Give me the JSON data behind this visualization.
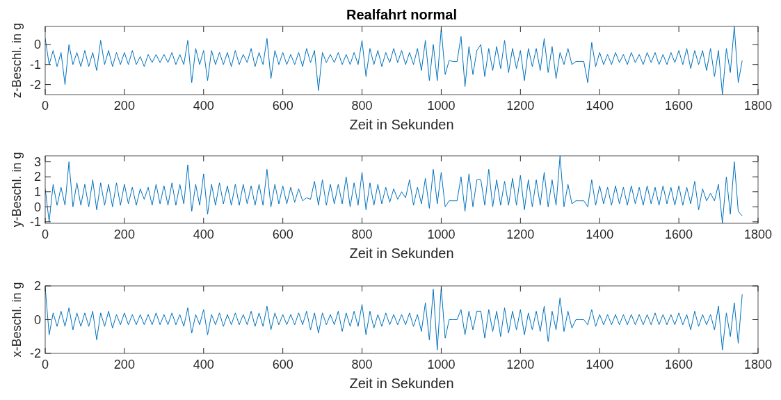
{
  "chart_data": [
    {
      "type": "line",
      "title": "Realfahrt normal",
      "xlabel": "Zeit in Sekunden",
      "ylabel": "z-Beschl. in g",
      "xlim": [
        0,
        1800
      ],
      "xticks": [
        0,
        200,
        400,
        600,
        800,
        1000,
        1200,
        1400,
        1600,
        1800
      ],
      "ylim": [
        -2.5,
        0.9
      ],
      "yticks": [
        -2,
        -1,
        0
      ],
      "grid": false,
      "series": [
        {
          "color": "#0072bd",
          "x": [
            0,
            10,
            20,
            30,
            40,
            50,
            60,
            70,
            80,
            90,
            100,
            110,
            120,
            130,
            140,
            150,
            160,
            170,
            180,
            190,
            200,
            210,
            220,
            230,
            240,
            250,
            260,
            270,
            280,
            290,
            300,
            310,
            320,
            330,
            340,
            350,
            360,
            370,
            380,
            390,
            400,
            410,
            420,
            430,
            440,
            450,
            460,
            470,
            480,
            490,
            500,
            510,
            520,
            530,
            540,
            550,
            560,
            570,
            580,
            590,
            600,
            610,
            620,
            630,
            640,
            650,
            660,
            670,
            680,
            690,
            700,
            710,
            720,
            730,
            740,
            750,
            760,
            770,
            780,
            790,
            800,
            810,
            820,
            830,
            840,
            850,
            860,
            870,
            880,
            890,
            900,
            910,
            920,
            930,
            940,
            950,
            960,
            970,
            980,
            990,
            1000,
            1010,
            1020,
            1030,
            1040,
            1050,
            1060,
            1070,
            1080,
            1090,
            1100,
            1110,
            1120,
            1130,
            1140,
            1150,
            1160,
            1170,
            1180,
            1190,
            1200,
            1210,
            1220,
            1230,
            1240,
            1250,
            1260,
            1270,
            1280,
            1290,
            1300,
            1310,
            1320,
            1330,
            1340,
            1350,
            1360,
            1370,
            1380,
            1390,
            1400,
            1410,
            1420,
            1430,
            1440,
            1450,
            1460,
            1470,
            1480,
            1490,
            1500,
            1510,
            1520,
            1530,
            1540,
            1550,
            1560,
            1570,
            1580,
            1590,
            1600,
            1610,
            1620,
            1630,
            1640,
            1650,
            1660,
            1670,
            1680,
            1690,
            1700,
            1710,
            1720,
            1730,
            1740,
            1750,
            1760
          ],
          "values": [
            0.3,
            -1.0,
            -0.3,
            -1.1,
            -0.4,
            -2.0,
            0.0,
            -1.0,
            -0.4,
            -1.1,
            -0.3,
            -1.1,
            -0.4,
            -1.3,
            0.2,
            -1.0,
            -0.3,
            -1.1,
            -0.4,
            -1.0,
            -0.4,
            -1.0,
            -0.3,
            -1.0,
            -0.6,
            -1.1,
            -0.5,
            -0.9,
            -0.5,
            -0.9,
            -0.5,
            -0.9,
            -0.4,
            -1.0,
            -0.5,
            -1.0,
            0.2,
            -1.9,
            -0.2,
            -1.0,
            -0.3,
            -1.8,
            -0.3,
            -1.0,
            -0.4,
            -1.0,
            -0.4,
            -1.1,
            -0.3,
            -1.0,
            -0.5,
            -0.9,
            -0.2,
            -1.1,
            -0.4,
            -1.0,
            0.3,
            -1.7,
            -0.3,
            -1.0,
            -0.4,
            -1.0,
            -0.5,
            -1.0,
            -0.4,
            -1.1,
            -0.2,
            -0.9,
            -0.3,
            -2.3,
            -0.4,
            -0.9,
            -0.5,
            -0.9,
            -0.4,
            -1.0,
            -0.5,
            -1.0,
            -0.4,
            -1.0,
            0.2,
            -1.6,
            -0.2,
            -1.0,
            -0.3,
            -1.1,
            -0.4,
            -0.9,
            -0.2,
            -0.9,
            -0.3,
            -1.0,
            -0.4,
            -1.0,
            -0.2,
            -1.3,
            0.2,
            -1.8,
            0.0,
            -1.8,
            0.8,
            -1.5,
            -0.8,
            -0.85,
            -0.85,
            0.4,
            -2.1,
            -0.1,
            -1.5,
            -0.3,
            0.0,
            -1.6,
            -0.2,
            -1.3,
            -0.1,
            -1.2,
            0.2,
            -1.4,
            -0.2,
            -1.2,
            -0.3,
            -1.8,
            -0.2,
            -1.1,
            -0.2,
            -1.3,
            0.3,
            -1.4,
            -0.1,
            -1.7,
            -0.4,
            -1.0,
            -0.2,
            -1.0,
            -0.85,
            -0.85,
            -0.85,
            -1.9,
            0.1,
            -1.1,
            -0.4,
            -1.0,
            -0.5,
            -1.0,
            -0.4,
            -0.9,
            -0.5,
            -1.0,
            -0.4,
            -0.9,
            -0.5,
            -1.0,
            -0.4,
            -0.9,
            -0.4,
            -1.0,
            -0.5,
            -1.0,
            -0.4,
            -0.9,
            -0.3,
            -1.0,
            -0.2,
            -1.2,
            -0.3,
            -1.0,
            -0.3,
            -1.3,
            -0.2,
            -1.6,
            -0.3,
            -2.5,
            -0.2,
            -1.4,
            0.9,
            -1.9,
            -0.8
          ]
        }
      ]
    },
    {
      "type": "line",
      "xlabel": "Zeit in Sekunden",
      "ylabel": "y-Beschl. in g",
      "xlim": [
        0,
        1800
      ],
      "xticks": [
        0,
        200,
        400,
        600,
        800,
        1000,
        1200,
        1400,
        1600,
        1800
      ],
      "ylim": [
        -1.1,
        3.4
      ],
      "yticks": [
        -1,
        0,
        1,
        2,
        3
      ],
      "grid": false,
      "series": [
        {
          "color": "#0072bd",
          "x": [
            0,
            10,
            20,
            30,
            40,
            50,
            60,
            70,
            80,
            90,
            100,
            110,
            120,
            130,
            140,
            150,
            160,
            170,
            180,
            190,
            200,
            210,
            220,
            230,
            240,
            250,
            260,
            270,
            280,
            290,
            300,
            310,
            320,
            330,
            340,
            350,
            360,
            370,
            380,
            390,
            400,
            410,
            420,
            430,
            440,
            450,
            460,
            470,
            480,
            490,
            500,
            510,
            520,
            530,
            540,
            550,
            560,
            570,
            580,
            590,
            600,
            610,
            620,
            630,
            640,
            650,
            660,
            670,
            680,
            690,
            700,
            710,
            720,
            730,
            740,
            750,
            760,
            770,
            780,
            790,
            800,
            810,
            820,
            830,
            840,
            850,
            860,
            870,
            880,
            890,
            900,
            910,
            920,
            930,
            940,
            950,
            960,
            970,
            980,
            990,
            1000,
            1010,
            1020,
            1030,
            1040,
            1050,
            1060,
            1070,
            1080,
            1090,
            1100,
            1110,
            1120,
            1130,
            1140,
            1150,
            1160,
            1170,
            1180,
            1190,
            1200,
            1210,
            1220,
            1230,
            1240,
            1250,
            1260,
            1270,
            1280,
            1290,
            1300,
            1310,
            1320,
            1330,
            1340,
            1350,
            1360,
            1370,
            1380,
            1390,
            1400,
            1410,
            1420,
            1430,
            1440,
            1450,
            1460,
            1470,
            1480,
            1490,
            1500,
            1510,
            1520,
            1530,
            1540,
            1550,
            1560,
            1570,
            1580,
            1590,
            1600,
            1610,
            1620,
            1630,
            1640,
            1650,
            1660,
            1670,
            1680,
            1690,
            1700,
            1710,
            1720,
            1730,
            1740,
            1750,
            1760
          ],
          "values": [
            1.2,
            -1.0,
            1.5,
            0.1,
            1.3,
            0.1,
            3.0,
            0.0,
            1.6,
            0.1,
            1.5,
            0.0,
            1.8,
            -0.2,
            1.6,
            0.1,
            1.5,
            0.0,
            1.6,
            0.1,
            1.5,
            0.2,
            1.3,
            0.1,
            1.2,
            0.5,
            1.3,
            0.1,
            1.5,
            0.2,
            1.4,
            0.1,
            1.6,
            0.1,
            1.5,
            0.2,
            2.8,
            -0.3,
            1.5,
            0.1,
            2.2,
            -0.5,
            1.5,
            0.1,
            1.6,
            0.2,
            1.4,
            0.1,
            1.5,
            0.1,
            1.5,
            0.2,
            1.4,
            0.1,
            1.5,
            0.1,
            2.5,
            0.0,
            1.5,
            0.2,
            1.4,
            0.2,
            1.3,
            0.3,
            1.2,
            0.4,
            0.6,
            0.5,
            1.7,
            0.1,
            1.8,
            0.1,
            1.5,
            0.2,
            1.5,
            0.2,
            2.0,
            0.0,
            1.6,
            0.1,
            2.3,
            -0.2,
            1.6,
            0.1,
            1.5,
            0.2,
            1.3,
            0.3,
            1.2,
            0.5,
            1.0,
            0.6,
            1.8,
            0.1,
            1.3,
            0.2,
            1.9,
            -0.1,
            2.5,
            0.2,
            2.3,
            0.0,
            0.4,
            0.4,
            0.4,
            2.0,
            -0.3,
            2.2,
            0.0,
            1.8,
            1.8,
            0.1,
            2.5,
            0.0,
            1.8,
            0.1,
            1.7,
            0.1,
            1.9,
            0.1,
            2.1,
            -0.2,
            1.8,
            0.0,
            1.8,
            0.1,
            2.3,
            0.0,
            1.8,
            0.1,
            3.4,
            0.0,
            1.5,
            0.2,
            0.4,
            0.4,
            0.4,
            0.0,
            1.8,
            0.1,
            1.4,
            0.2,
            1.3,
            0.1,
            1.4,
            0.2,
            1.3,
            0.1,
            1.4,
            0.2,
            1.3,
            0.1,
            1.4,
            0.2,
            1.3,
            0.1,
            1.4,
            0.2,
            1.3,
            0.1,
            1.4,
            0.1,
            1.3,
            0.2,
            1.7,
            -0.2,
            1.2,
            0.4,
            0.9,
            0.4,
            1.5,
            -1.1,
            2.0,
            -0.5,
            3.0,
            -0.3,
            -0.6
          ]
        }
      ]
    },
    {
      "type": "line",
      "xlabel": "Zeit in Sekunden",
      "ylabel": "x-Beschl. in g",
      "xlim": [
        0,
        1800
      ],
      "xticks": [
        0,
        200,
        400,
        600,
        800,
        1000,
        1200,
        1400,
        1600,
        1800
      ],
      "ylim": [
        -2,
        2
      ],
      "yticks": [
        -2,
        0,
        2
      ],
      "grid": false,
      "series": [
        {
          "color": "#0072bd",
          "x": [
            0,
            10,
            20,
            30,
            40,
            50,
            60,
            70,
            80,
            90,
            100,
            110,
            120,
            130,
            140,
            150,
            160,
            170,
            180,
            190,
            200,
            210,
            220,
            230,
            240,
            250,
            260,
            270,
            280,
            290,
            300,
            310,
            320,
            330,
            340,
            350,
            360,
            370,
            380,
            390,
            400,
            410,
            420,
            430,
            440,
            450,
            460,
            470,
            480,
            490,
            500,
            510,
            520,
            530,
            540,
            550,
            560,
            570,
            580,
            590,
            600,
            610,
            620,
            630,
            640,
            650,
            660,
            670,
            680,
            690,
            700,
            710,
            720,
            730,
            740,
            750,
            760,
            770,
            780,
            790,
            800,
            810,
            820,
            830,
            840,
            850,
            860,
            870,
            880,
            890,
            900,
            910,
            920,
            930,
            940,
            950,
            960,
            970,
            980,
            990,
            1000,
            1010,
            1020,
            1030,
            1040,
            1050,
            1060,
            1070,
            1080,
            1090,
            1100,
            1110,
            1120,
            1130,
            1140,
            1150,
            1160,
            1170,
            1180,
            1190,
            1200,
            1210,
            1220,
            1230,
            1240,
            1250,
            1260,
            1270,
            1280,
            1290,
            1300,
            1310,
            1320,
            1330,
            1340,
            1350,
            1360,
            1370,
            1380,
            1390,
            1400,
            1410,
            1420,
            1430,
            1440,
            1450,
            1460,
            1470,
            1480,
            1490,
            1500,
            1510,
            1520,
            1530,
            1540,
            1550,
            1560,
            1570,
            1580,
            1590,
            1600,
            1610,
            1620,
            1630,
            1640,
            1650,
            1660,
            1670,
            1680,
            1690,
            1700,
            1710,
            1720,
            1730,
            1740,
            1750,
            1760
          ],
          "values": [
            1.9,
            -0.9,
            0.4,
            -0.4,
            0.5,
            -0.4,
            0.7,
            -0.6,
            0.4,
            -0.4,
            0.4,
            -0.4,
            0.5,
            -1.2,
            0.4,
            -0.4,
            0.5,
            -0.5,
            0.3,
            -0.3,
            0.4,
            -0.3,
            0.3,
            -0.3,
            0.3,
            -0.3,
            0.3,
            -0.3,
            0.4,
            -0.3,
            0.3,
            -0.3,
            0.4,
            -0.3,
            0.3,
            -0.4,
            0.7,
            -0.8,
            0.3,
            -0.3,
            0.6,
            -0.9,
            0.3,
            -0.3,
            0.4,
            -0.4,
            0.3,
            -0.3,
            0.4,
            -0.3,
            0.3,
            -0.3,
            0.5,
            -0.4,
            0.4,
            -0.4,
            0.8,
            -0.6,
            0.4,
            -0.3,
            0.3,
            -0.3,
            0.3,
            -0.3,
            0.4,
            -0.3,
            0.5,
            -0.6,
            0.4,
            -0.8,
            0.4,
            -0.3,
            0.3,
            -0.3,
            0.5,
            -0.7,
            0.4,
            -0.4,
            0.5,
            -0.4,
            0.9,
            -0.9,
            0.5,
            -0.5,
            0.3,
            -0.4,
            0.4,
            -0.3,
            0.3,
            -0.3,
            0.3,
            -0.3,
            0.4,
            -0.4,
            0.3,
            -0.7,
            1.0,
            -1.2,
            1.8,
            -1.8,
            1.9,
            -1.1,
            0.0,
            0.0,
            0.0,
            0.6,
            -0.9,
            0.5,
            -0.6,
            0.5,
            0.5,
            -1.1,
            0.6,
            -0.7,
            0.5,
            -1.0,
            0.7,
            -0.8,
            0.5,
            -0.6,
            0.6,
            -0.9,
            0.4,
            -0.6,
            0.5,
            -0.7,
            0.8,
            -1.3,
            0.5,
            -0.6,
            1.3,
            -0.7,
            0.5,
            -0.5,
            0.0,
            0.0,
            0.0,
            -0.3,
            0.6,
            -0.4,
            0.3,
            -0.3,
            0.3,
            -0.3,
            0.3,
            -0.3,
            0.3,
            -0.3,
            0.3,
            -0.3,
            0.3,
            -0.3,
            0.3,
            -0.3,
            0.4,
            -0.3,
            0.3,
            -0.3,
            0.3,
            -0.3,
            0.4,
            -0.3,
            0.3,
            -0.6,
            0.5,
            -0.4,
            0.3,
            -0.3,
            0.3,
            -0.6,
            0.8,
            -1.8,
            0.4,
            -1.0,
            1.0,
            -1.4,
            1.5
          ]
        }
      ]
    }
  ]
}
